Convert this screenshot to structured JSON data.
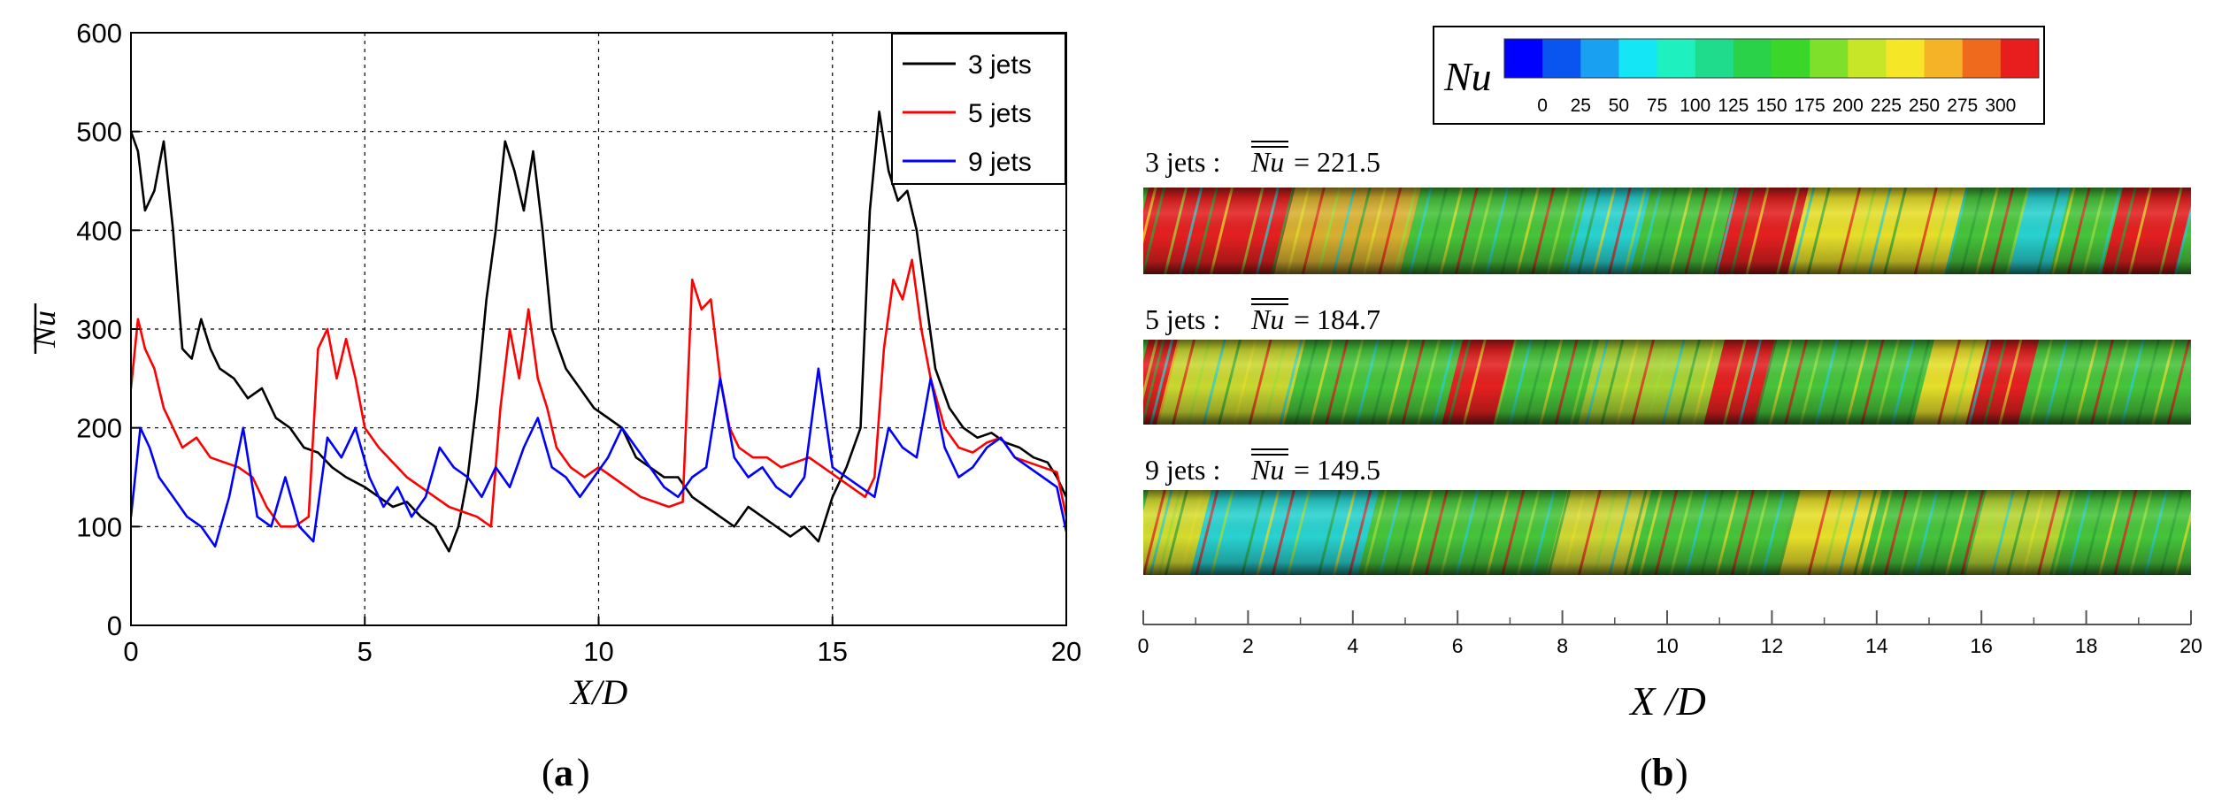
{
  "panel_a": {
    "label": "a",
    "chart_data": {
      "type": "line",
      "xlabel": "X/D",
      "ylabel": "Nu",
      "xlim": [
        0,
        20
      ],
      "ylim": [
        0,
        600
      ],
      "xticks": [
        0,
        5,
        10,
        15,
        20
      ],
      "yticks": [
        0,
        100,
        200,
        300,
        400,
        500,
        600
      ],
      "grid": true,
      "legend_position": "top-right",
      "series": [
        {
          "name": "3  jets",
          "color": "#000000",
          "x": [
            0,
            0.15,
            0.3,
            0.5,
            0.7,
            0.9,
            1.1,
            1.3,
            1.5,
            1.7,
            1.9,
            2.2,
            2.5,
            2.8,
            3.1,
            3.4,
            3.7,
            4.0,
            4.3,
            4.6,
            5.0,
            5.3,
            5.6,
            5.9,
            6.2,
            6.5,
            6.8,
            7.0,
            7.2,
            7.4,
            7.6,
            7.8,
            8.0,
            8.2,
            8.4,
            8.6,
            8.8,
            9.0,
            9.3,
            9.6,
            9.9,
            10.2,
            10.5,
            10.8,
            11.1,
            11.4,
            11.7,
            12.0,
            12.3,
            12.6,
            12.9,
            13.2,
            13.5,
            13.8,
            14.1,
            14.4,
            14.7,
            15.0,
            15.3,
            15.6,
            15.8,
            16.0,
            16.2,
            16.4,
            16.6,
            16.8,
            17.0,
            17.2,
            17.5,
            17.8,
            18.1,
            18.4,
            18.7,
            19.0,
            19.3,
            19.6,
            19.8,
            20.0
          ],
          "values": [
            500,
            480,
            420,
            440,
            490,
            400,
            280,
            270,
            310,
            280,
            260,
            250,
            230,
            240,
            210,
            200,
            180,
            175,
            160,
            150,
            140,
            130,
            120,
            125,
            110,
            100,
            75,
            100,
            150,
            230,
            330,
            400,
            490,
            460,
            420,
            480,
            400,
            300,
            260,
            240,
            220,
            210,
            200,
            170,
            160,
            150,
            150,
            130,
            120,
            110,
            100,
            120,
            110,
            100,
            90,
            100,
            85,
            130,
            160,
            200,
            420,
            520,
            460,
            430,
            440,
            400,
            330,
            260,
            220,
            200,
            190,
            195,
            185,
            180,
            170,
            165,
            150,
            130
          ]
        },
        {
          "name": "5  jets",
          "color": "#ff0000",
          "x": [
            0,
            0.15,
            0.3,
            0.5,
            0.7,
            0.9,
            1.1,
            1.4,
            1.7,
            2.0,
            2.3,
            2.6,
            2.9,
            3.2,
            3.5,
            3.8,
            4.0,
            4.2,
            4.4,
            4.6,
            4.8,
            5.0,
            5.3,
            5.6,
            5.9,
            6.2,
            6.5,
            6.8,
            7.1,
            7.4,
            7.7,
            7.9,
            8.1,
            8.3,
            8.5,
            8.7,
            8.9,
            9.1,
            9.4,
            9.7,
            10.0,
            10.3,
            10.6,
            10.9,
            11.2,
            11.5,
            11.8,
            12.0,
            12.2,
            12.4,
            12.6,
            12.8,
            13.0,
            13.3,
            13.6,
            13.9,
            14.2,
            14.5,
            14.8,
            15.1,
            15.4,
            15.7,
            15.9,
            16.1,
            16.3,
            16.5,
            16.7,
            16.9,
            17.1,
            17.4,
            17.7,
            18.0,
            18.3,
            18.6,
            18.9,
            19.2,
            19.5,
            19.8,
            20.0
          ],
          "values": [
            240,
            310,
            280,
            260,
            220,
            200,
            180,
            190,
            170,
            165,
            160,
            150,
            120,
            100,
            100,
            110,
            280,
            300,
            250,
            290,
            250,
            200,
            180,
            165,
            150,
            140,
            130,
            120,
            115,
            110,
            100,
            220,
            300,
            250,
            320,
            250,
            220,
            180,
            160,
            150,
            160,
            150,
            140,
            130,
            125,
            120,
            125,
            350,
            320,
            330,
            250,
            200,
            180,
            170,
            170,
            160,
            165,
            170,
            160,
            150,
            140,
            130,
            150,
            280,
            350,
            330,
            370,
            300,
            250,
            200,
            180,
            175,
            185,
            190,
            170,
            165,
            160,
            155,
            110
          ]
        },
        {
          "name": "9  jets",
          "color": "#0000ff",
          "x": [
            0,
            0.2,
            0.4,
            0.6,
            0.9,
            1.2,
            1.5,
            1.8,
            2.1,
            2.4,
            2.7,
            3.0,
            3.3,
            3.6,
            3.9,
            4.2,
            4.5,
            4.8,
            5.1,
            5.4,
            5.7,
            6.0,
            6.3,
            6.6,
            6.9,
            7.2,
            7.5,
            7.8,
            8.1,
            8.4,
            8.7,
            9.0,
            9.3,
            9.6,
            9.9,
            10.2,
            10.5,
            10.8,
            11.1,
            11.4,
            11.7,
            12.0,
            12.3,
            12.6,
            12.9,
            13.2,
            13.5,
            13.8,
            14.1,
            14.4,
            14.7,
            15.0,
            15.3,
            15.6,
            15.9,
            16.2,
            16.5,
            16.8,
            17.1,
            17.4,
            17.7,
            18.0,
            18.3,
            18.6,
            18.9,
            19.2,
            19.5,
            19.8,
            20.0
          ],
          "values": [
            110,
            200,
            180,
            150,
            130,
            110,
            100,
            80,
            130,
            200,
            110,
            100,
            150,
            100,
            85,
            190,
            170,
            200,
            150,
            120,
            140,
            110,
            130,
            180,
            160,
            150,
            130,
            160,
            140,
            180,
            210,
            160,
            150,
            130,
            150,
            170,
            200,
            180,
            160,
            140,
            130,
            150,
            160,
            250,
            170,
            150,
            160,
            140,
            130,
            150,
            260,
            160,
            150,
            140,
            130,
            200,
            180,
            170,
            250,
            180,
            150,
            160,
            180,
            190,
            170,
            160,
            150,
            140,
            95
          ]
        }
      ]
    }
  },
  "panel_b": {
    "label": "b",
    "colorbar": {
      "title": "Nu",
      "tick_labels": [
        "0",
        "25",
        "50",
        "75",
        "100",
        "125",
        "150",
        "175",
        "200",
        "225",
        "250",
        "275",
        "300"
      ],
      "colors": [
        "#0000ff",
        "#0a55f0",
        "#1aa0f0",
        "#14e6f5",
        "#1ef0c0",
        "#1edc8c",
        "#2ad24a",
        "#3ad62a",
        "#7ee02a",
        "#c8e628",
        "#f5e628",
        "#f5b428",
        "#f06a1e",
        "#e81e1e"
      ]
    },
    "cases": [
      {
        "label": "3 jets :",
        "symbol": "Nu",
        "value": "= 221.5"
      },
      {
        "label": "5 jets :",
        "symbol": "Nu",
        "value": "= 184.7"
      },
      {
        "label": "9 jets :",
        "symbol": "Nu",
        "value": "= 149.5"
      }
    ],
    "axis": {
      "xlabel": "X /D",
      "ticks": [
        "0",
        "2",
        "4",
        "6",
        "8",
        "10",
        "12",
        "14",
        "16",
        "18",
        "20"
      ]
    }
  }
}
